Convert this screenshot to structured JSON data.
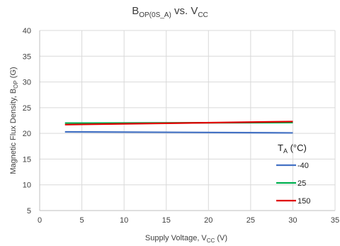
{
  "chart_data": {
    "type": "line",
    "title": "B<sub>OP(0S_A)</sub> vs. V<sub>CC</sub>",
    "title_parts": {
      "main": "B",
      "sub1": "OP(0S_A)",
      "mid": " vs. V",
      "sub2": "CC"
    },
    "xlabel_parts": {
      "main": "Supply Voltage, V",
      "sub": "CC",
      "tail": " (V)"
    },
    "ylabel_parts": {
      "main": "Magnetic Flux Density, B",
      "sub": "OP",
      "tail": " (G)"
    },
    "xlim": [
      0,
      35
    ],
    "ylim": [
      5,
      40
    ],
    "xticks": [
      0,
      5,
      10,
      15,
      20,
      25,
      30,
      35
    ],
    "yticks": [
      5,
      10,
      15,
      20,
      25,
      30,
      35,
      40
    ],
    "grid": true,
    "legend_title_parts": {
      "main": "T",
      "sub": "A",
      "tail": " (°C)"
    },
    "legend_position": "right",
    "series": [
      {
        "name": "-40",
        "color": "#4472c4",
        "x": [
          3,
          30
        ],
        "y": [
          20.3,
          20.1
        ]
      },
      {
        "name": "25",
        "color": "#00b050",
        "x": [
          3,
          30
        ],
        "y": [
          22.0,
          22.1
        ]
      },
      {
        "name": "150",
        "color": "#e00000",
        "x": [
          3,
          30
        ],
        "y": [
          21.7,
          22.3
        ]
      }
    ]
  }
}
